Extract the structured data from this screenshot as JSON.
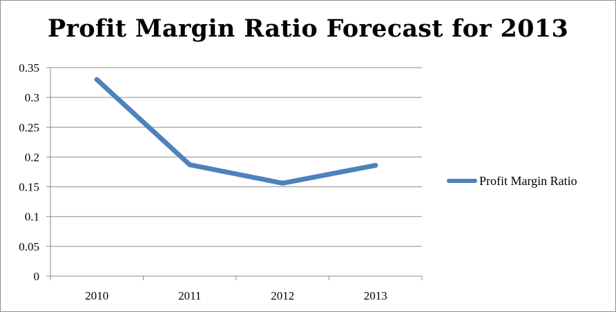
{
  "chart_data": {
    "type": "line",
    "title": "Profit Margin Ratio Forecast for 2013",
    "categories": [
      "2010",
      "2011",
      "2012",
      "2013"
    ],
    "series": [
      {
        "name": "Profit Margin Ratio",
        "values": [
          0.33,
          0.187,
          0.156,
          0.186
        ],
        "color": "#4f81bd"
      }
    ],
    "ylim": [
      0,
      0.35
    ],
    "yticks": [
      "0",
      "0.05",
      "0.1",
      "0.15",
      "0.2",
      "0.25",
      "0.3",
      "0.35"
    ],
    "xlabel": "",
    "ylabel": "",
    "grid": true,
    "legend_position": "right"
  }
}
